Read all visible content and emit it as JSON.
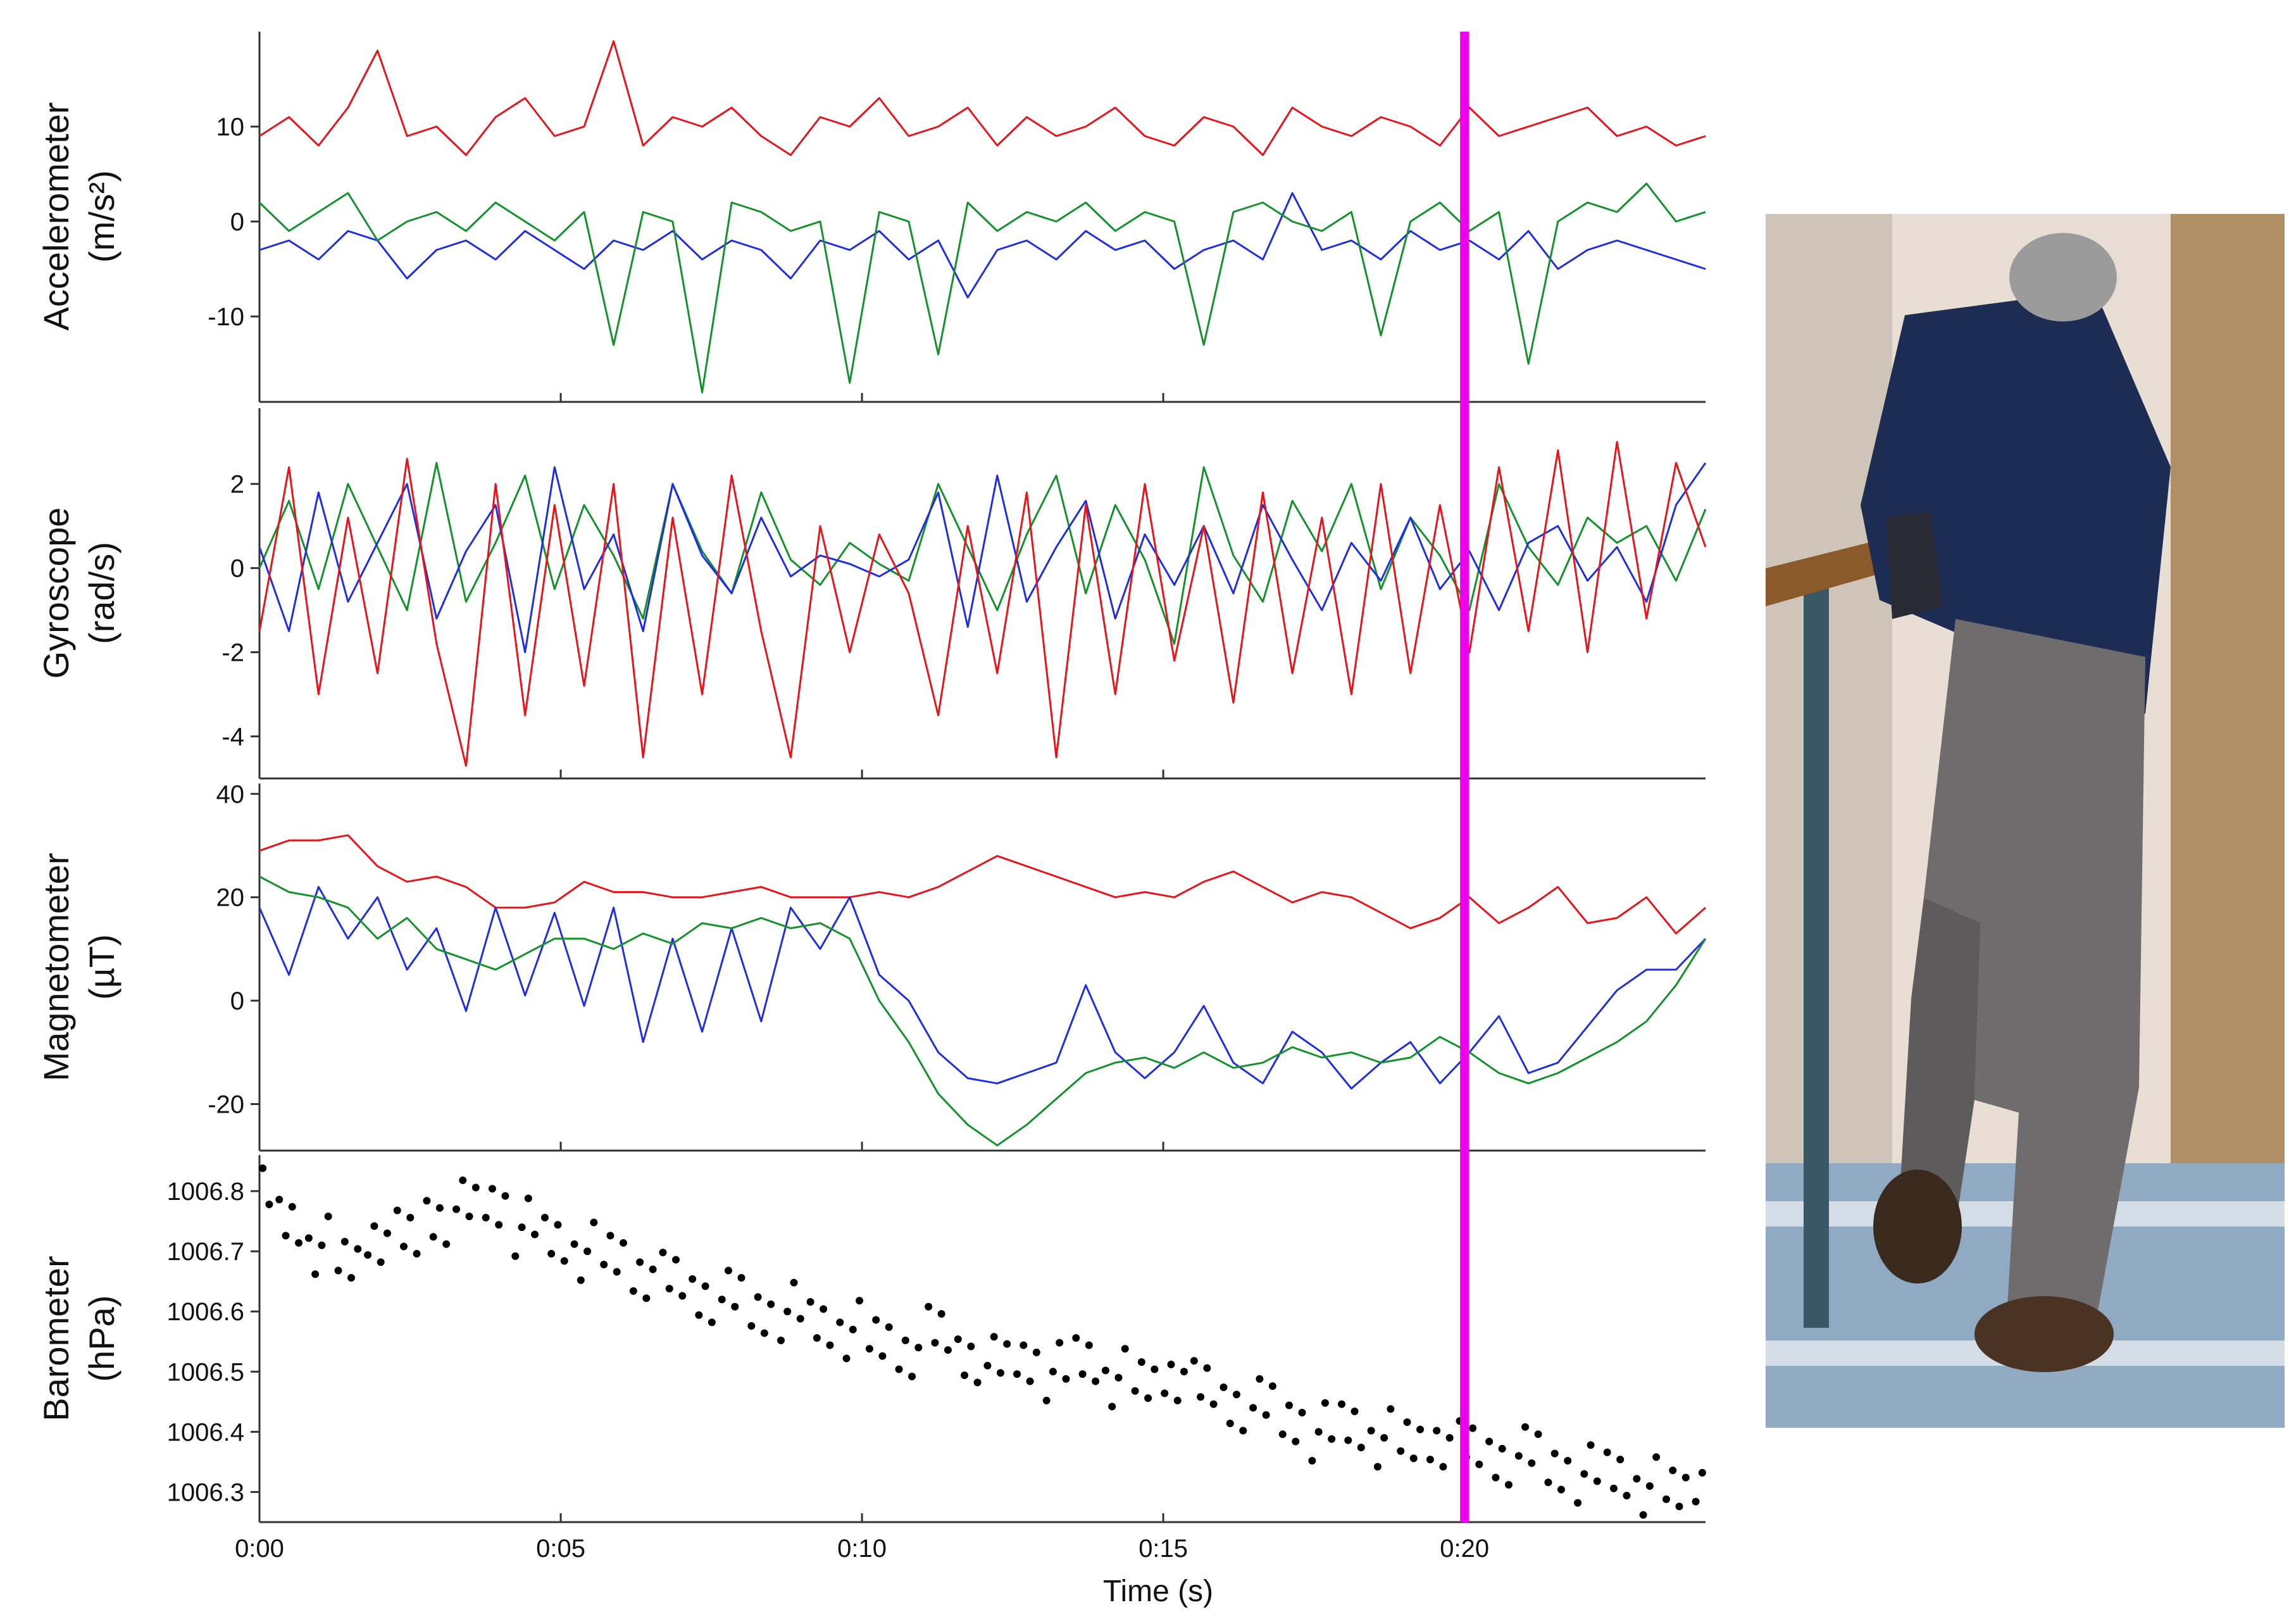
{
  "chart_data": {
    "type": "line",
    "xlabel": "Time (s)",
    "x_ticks": [
      "0:00",
      "0:05",
      "0:10",
      "0:15",
      "0:20"
    ],
    "x_tick_values": [
      0,
      5,
      10,
      15,
      20
    ],
    "xlim": [
      0,
      24
    ],
    "marker": {
      "x": 20,
      "color": "#ee00ee"
    },
    "panels": [
      {
        "name": "accelerometer",
        "ylabel_line1": "Accelerometer",
        "ylabel_line2": "(m/s²)",
        "ylim": [
          -19,
          20
        ],
        "y_ticks": [
          10,
          0,
          -10
        ],
        "y_tick_labels": [
          "10",
          "0",
          "-10"
        ],
        "series": [
          {
            "color": "#e8141b",
            "values": [
              9,
              11,
              8,
              12,
              18,
              9,
              10,
              7,
              11,
              13,
              9,
              10,
              19,
              8,
              11,
              10,
              12,
              9,
              7,
              11,
              10,
              13,
              9,
              10,
              12,
              8,
              11,
              9,
              10,
              12,
              9,
              8,
              11,
              10,
              7,
              12,
              10,
              9,
              11,
              10,
              8,
              12,
              9,
              10,
              11,
              12,
              9,
              10,
              8,
              9
            ]
          },
          {
            "color": "#1f2ee0",
            "values": [
              -3,
              -2,
              -4,
              -1,
              -2,
              -6,
              -3,
              -2,
              -4,
              -1,
              -3,
              -5,
              -2,
              -3,
              -1,
              -4,
              -2,
              -3,
              -6,
              -2,
              -3,
              -1,
              -4,
              -2,
              -8,
              -3,
              -2,
              -4,
              -1,
              -3,
              -2,
              -5,
              -3,
              -2,
              -4,
              3,
              -3,
              -2,
              -4,
              -1,
              -3,
              -2,
              -4,
              -1,
              -5,
              -3,
              -2,
              -3,
              -4,
              -5
            ]
          },
          {
            "color": "#13922c",
            "values": [
              2,
              -1,
              1,
              3,
              -2,
              0,
              1,
              -1,
              2,
              0,
              -2,
              1,
              -13,
              1,
              0,
              -18,
              2,
              1,
              -1,
              0,
              -17,
              1,
              0,
              -14,
              2,
              -1,
              1,
              0,
              2,
              -1,
              1,
              0,
              -13,
              1,
              2,
              0,
              -1,
              1,
              -12,
              0,
              2,
              -1,
              1,
              -15,
              0,
              2,
              1,
              4,
              0,
              1
            ]
          }
        ]
      },
      {
        "name": "gyroscope",
        "ylabel_line1": "Gyroscope",
        "ylabel_line2": "(rad/s)",
        "ylim": [
          -5,
          3.8
        ],
        "y_ticks": [
          2,
          0,
          -2,
          -4
        ],
        "y_tick_labels": [
          "2",
          "0",
          "-2",
          "-4"
        ],
        "series": [
          {
            "color": "#13922c",
            "values": [
              0,
              1.6,
              -0.5,
              2.0,
              0.5,
              -1.0,
              2.5,
              -0.8,
              0.6,
              2.2,
              -0.5,
              1.5,
              0.3,
              -1.2,
              2.0,
              0.4,
              -0.6,
              1.8,
              0.2,
              -0.4,
              0.6,
              0.1,
              -0.3,
              2.0,
              0.5,
              -1.0,
              0.8,
              2.2,
              -0.6,
              1.5,
              0.2,
              -1.8,
              2.4,
              0.3,
              -0.8,
              1.6,
              0.4,
              2.0,
              -0.5,
              1.2,
              0.3,
              -1.0,
              2.0,
              0.5,
              -0.4,
              1.2,
              0.6,
              1.0,
              -0.3,
              1.4
            ]
          },
          {
            "color": "#1f2ee0",
            "values": [
              0.5,
              -1.5,
              1.8,
              -0.8,
              0.6,
              2.0,
              -1.2,
              0.4,
              1.5,
              -2.0,
              2.4,
              -0.5,
              0.8,
              -1.5,
              2.0,
              0.3,
              -0.6,
              1.2,
              -0.2,
              0.3,
              0.1,
              -0.2,
              0.2,
              1.8,
              -1.4,
              2.2,
              -0.8,
              0.5,
              1.6,
              -1.2,
              0.8,
              -0.4,
              1.0,
              -0.6,
              1.5,
              0.2,
              -1.0,
              0.6,
              -0.3,
              1.2,
              -0.5,
              0.4,
              -1.0,
              0.6,
              1.0,
              -0.3,
              0.5,
              -0.8,
              1.5,
              2.5
            ]
          },
          {
            "color": "#e8141b",
            "values": [
              -1.5,
              2.4,
              -3.0,
              1.2,
              -2.5,
              2.6,
              -1.8,
              -4.7,
              2.0,
              -3.5,
              1.5,
              -2.8,
              2.0,
              -4.5,
              1.2,
              -3.0,
              2.2,
              -1.5,
              -4.5,
              1.0,
              -2.0,
              0.8,
              -0.6,
              -3.5,
              1.0,
              -2.5,
              1.8,
              -4.5,
              1.5,
              -3.0,
              2.0,
              -2.2,
              1.0,
              -3.2,
              1.8,
              -2.5,
              1.2,
              -3.0,
              2.0,
              -2.5,
              1.5,
              -2.0,
              2.4,
              -1.5,
              2.8,
              -2.0,
              3.0,
              -1.2,
              2.5,
              0.5
            ]
          }
        ]
      },
      {
        "name": "magnetometer",
        "ylabel_line1": "Magnetometer",
        "ylabel_line2": "(µT)",
        "ylim": [
          -29,
          42
        ],
        "y_ticks": [
          40,
          20,
          0,
          -20
        ],
        "y_tick_labels": [
          "40",
          "20",
          "0",
          "-20"
        ],
        "series": [
          {
            "color": "#e8141b",
            "values": [
              29,
              31,
              31,
              32,
              26,
              23,
              24,
              22,
              18,
              18,
              19,
              23,
              21,
              21,
              20,
              20,
              21,
              22,
              20,
              20,
              20,
              21,
              20,
              22,
              25,
              28,
              26,
              24,
              22,
              20,
              21,
              20,
              23,
              25,
              22,
              19,
              21,
              20,
              17,
              14,
              16,
              20,
              15,
              18,
              22,
              15,
              16,
              20,
              13,
              18
            ]
          },
          {
            "color": "#1f2ee0",
            "values": [
              18,
              5,
              22,
              12,
              20,
              6,
              14,
              -2,
              18,
              1,
              17,
              -1,
              18,
              -8,
              12,
              -6,
              14,
              -4,
              18,
              10,
              20,
              5,
              0,
              -10,
              -15,
              -16,
              -14,
              -12,
              3,
              -10,
              -15,
              -10,
              -1,
              -12,
              -16,
              -6,
              -10,
              -17,
              -12,
              -8,
              -16,
              -10,
              -3,
              -14,
              -12,
              -5,
              2,
              6,
              6,
              12
            ]
          },
          {
            "color": "#13922c",
            "values": [
              24,
              21,
              20,
              18,
              12,
              16,
              10,
              8,
              6,
              9,
              12,
              12,
              10,
              13,
              11,
              15,
              14,
              16,
              14,
              15,
              12,
              0,
              -8,
              -18,
              -24,
              -28,
              -24,
              -19,
              -14,
              -12,
              -11,
              -13,
              -10,
              -13,
              -12,
              -9,
              -11,
              -10,
              -12,
              -11,
              -7,
              -10,
              -14,
              -16,
              -14,
              -11,
              -8,
              -4,
              3,
              12
            ]
          }
        ]
      },
      {
        "name": "barometer",
        "ylabel_line1": "Barometer",
        "ylabel_line2": "(hPa)",
        "ylim": [
          1006.25,
          1006.86
        ],
        "y_ticks": [
          1006.8,
          1006.7,
          1006.6,
          1006.5,
          1006.4,
          1006.3
        ],
        "y_tick_labels": [
          "1006.8",
          "1006.7",
          "1006.6",
          "1006.5",
          "1006.4",
          "1006.3"
        ],
        "series": [
          {
            "color": "#000000",
            "values": [
              1006.79,
              1006.75,
              1006.71,
              1006.68,
              1006.73,
              1006.72,
              1006.76,
              1006.77,
              1006.78,
              1006.74,
              1006.72,
              1006.7,
              1006.69,
              1006.67,
              1006.65,
              1006.63,
              1006.62,
              1006.6,
              1006.6,
              1006.58,
              1006.57,
              1006.55,
              1006.54,
              1006.56,
              1006.53,
              1006.51,
              1006.52,
              1006.5,
              1006.52,
              1006.49,
              1006.48,
              1006.5,
              1006.47,
              1006.45,
              1006.44,
              1006.42,
              1006.4,
              1006.41,
              1006.39,
              1006.38,
              1006.39,
              1006.37,
              1006.36,
              1006.36,
              1006.34,
              1006.33,
              1006.33,
              1006.31,
              1006.3,
              1006.32
            ]
          }
        ]
      }
    ]
  },
  "photo": {
    "subject": "person climbing stairs holding handrail"
  }
}
